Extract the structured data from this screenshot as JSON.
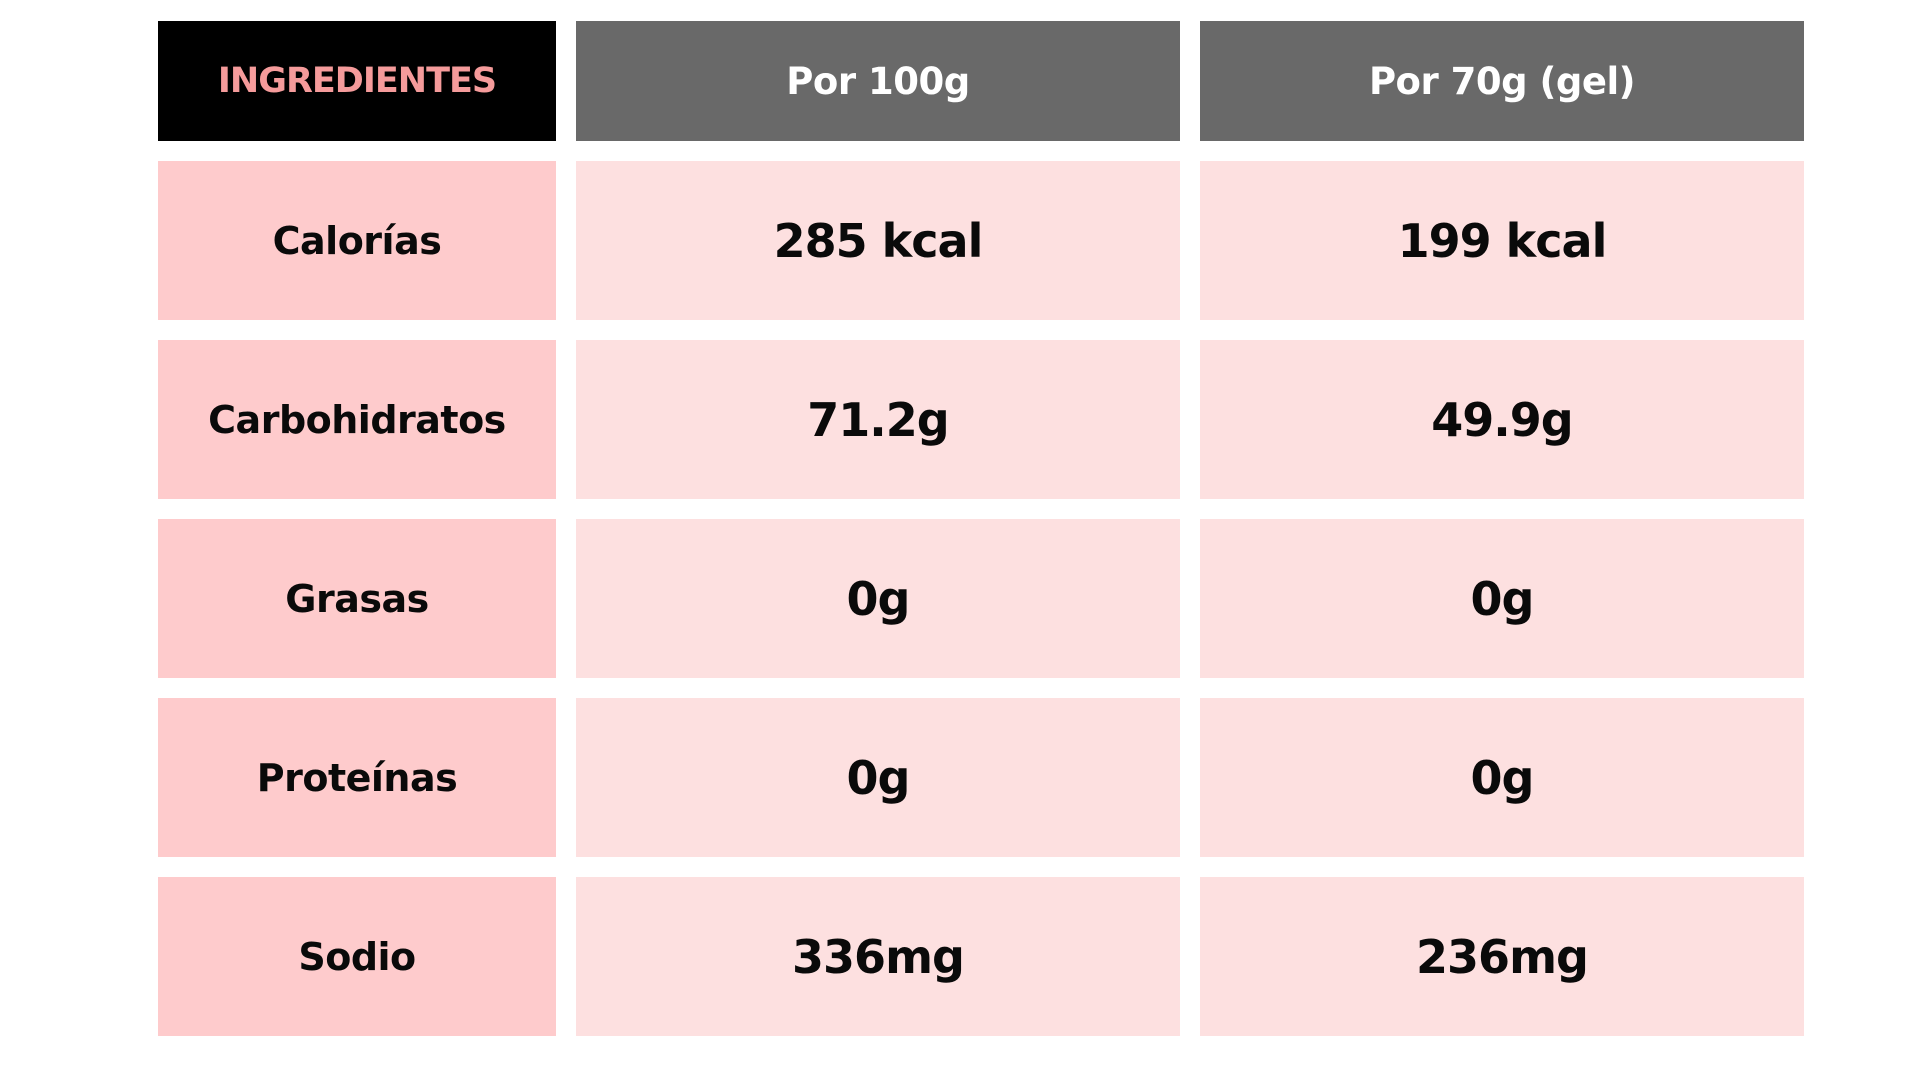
{
  "table": {
    "header": {
      "label": "INGREDIENTES",
      "col1": "Por 100g",
      "col2": "Por 70g (gel)"
    },
    "rows": [
      {
        "label": "Calorías",
        "per100": "285 kcal",
        "per70": "199 kcal"
      },
      {
        "label": "Carbohidratos",
        "per100": "71.2g",
        "per70": "49.9g"
      },
      {
        "label": "Grasas",
        "per100": "0g",
        "per70": "0g"
      },
      {
        "label": "Proteínas",
        "per100": "0g",
        "per70": "0g"
      },
      {
        "label": "Sodio",
        "per100": "336mg",
        "per70": "236mg"
      }
    ]
  },
  "colors": {
    "header_label_bg": "#000000",
    "header_label_text": "#f59b9b",
    "header_col_bg": "#696969",
    "header_col_text": "#ffffff",
    "row_label_bg": "#fecbcc",
    "row_value_bg": "#fde0e0",
    "text": "#0a0a0a"
  }
}
